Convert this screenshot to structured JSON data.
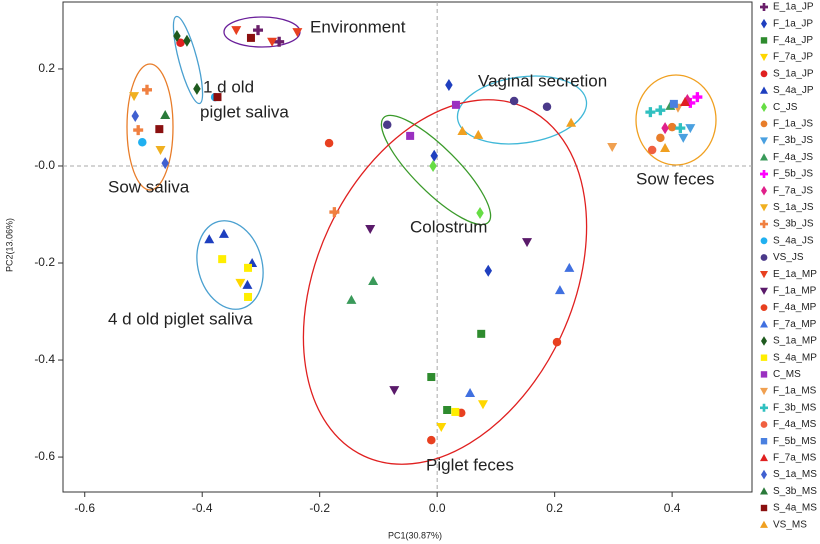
{
  "chart_data": {
    "type": "scatter",
    "x_label": "PC1(30.87%)",
    "y_label": "PC2(13.06%)",
    "xlim": [
      -0.637,
      0.536
    ],
    "ylim": [
      -0.672,
      0.338
    ],
    "xticks": [
      -0.6,
      -0.4,
      -0.2,
      {
        "value": 0,
        "label": "0.0"
      },
      0.2,
      0.4
    ],
    "yticks": [
      0.2,
      {
        "value": 0,
        "label": "-0.0"
      },
      -0.2,
      -0.4,
      -0.6
    ],
    "zero_lines": true,
    "legend": "right",
    "annotations": [
      "Environment",
      "1 d old",
      "piglet saliva",
      "Sow saliva",
      "4 d old piglet saliva",
      "Vaginal secretion",
      "Colostrum",
      "Sow feces",
      "Piglet feces"
    ],
    "series": [
      {
        "name": "E_1a_JP",
        "color": "#6a1f6a",
        "marker": "plus",
        "x": [
          -0.305,
          -0.269
        ],
        "values": [
          0.28,
          0.256
        ]
      },
      {
        "name": "F_1a_JP",
        "color": "#1f3fbf",
        "marker": "diamond",
        "x": [
          -0.005,
          0.087,
          0.02
        ],
        "values": [
          0.021,
          -0.216,
          0.167
        ]
      },
      {
        "name": "F_4a_JP",
        "color": "#2e8b2e",
        "marker": "square",
        "x": [
          0.075,
          -0.01,
          0.017
        ],
        "values": [
          -0.346,
          -0.435,
          -0.503
        ]
      },
      {
        "name": "F_7a_JP",
        "color": "#ffd700",
        "marker": "triangle-down",
        "x": [
          0.078,
          0.007,
          -0.335
        ],
        "values": [
          -0.491,
          -0.538,
          -0.241
        ]
      },
      {
        "name": "S_1a_JP",
        "color": "#e02020",
        "marker": "circle",
        "x": [
          -0.437
        ],
        "values": [
          0.254
        ]
      },
      {
        "name": "S_4a_JP",
        "color": "#1e3fbf",
        "marker": "triangle-up",
        "x": [
          -0.388,
          -0.363,
          -0.315,
          -0.323
        ],
        "values": [
          -0.151,
          -0.14,
          -0.2,
          -0.245
        ]
      },
      {
        "name": "C_JS",
        "color": "#66dd44",
        "marker": "diamond",
        "x": [
          -0.007,
          0.073
        ],
        "values": [
          0,
          -0.097
        ]
      },
      {
        "name": "F_1a_JS",
        "color": "#e87d2a",
        "marker": "circle",
        "x": [
          0.4,
          0.38
        ],
        "values": [
          0.08,
          0.058
        ]
      },
      {
        "name": "F_3b_JS",
        "color": "#4aa0e0",
        "marker": "triangle-down",
        "x": [
          0.419,
          0.431
        ],
        "values": [
          0.058,
          0.078
        ]
      },
      {
        "name": "F_4a_JS",
        "color": "#3a9a5a",
        "marker": "triangle-up",
        "x": [
          -0.109,
          -0.146,
          0.397
        ],
        "values": [
          -0.237,
          -0.276,
          0.124
        ]
      },
      {
        "name": "F_5b_JS",
        "color": "#ff00ff",
        "marker": "plus",
        "x": [
          0.443,
          0.431
        ],
        "values": [
          0.142,
          0.13
        ]
      },
      {
        "name": "F_7a_JS",
        "color": "#e0208a",
        "marker": "diamond",
        "x": [
          0.426,
          0.388
        ],
        "values": [
          0.136,
          0.078
        ]
      },
      {
        "name": "S_1a_JS",
        "color": "#f0b020",
        "marker": "triangle-down",
        "x": [
          -0.516,
          -0.471
        ],
        "values": [
          0.144,
          0.033
        ]
      },
      {
        "name": "S_3b_JS",
        "color": "#f08040",
        "marker": "plus",
        "x": [
          -0.494,
          -0.509,
          -0.175
        ],
        "values": [
          0.157,
          0.074,
          -0.095
        ]
      },
      {
        "name": "S_4a_JS",
        "color": "#20b0f0",
        "marker": "circle",
        "x": [
          -0.502,
          -0.378
        ],
        "values": [
          0.049,
          0.142
        ]
      },
      {
        "name": "VS_JS",
        "color": "#4b3a8a",
        "marker": "circle",
        "x": [
          -0.085,
          0.131,
          0.187
        ],
        "values": [
          0.085,
          0.134,
          0.122
        ]
      },
      {
        "name": "E_1a_MP",
        "color": "#e84020",
        "marker": "triangle-down",
        "x": [
          -0.342,
          -0.238,
          -0.281
        ],
        "values": [
          0.28,
          0.276,
          0.256
        ]
      },
      {
        "name": "F_1a_MP",
        "color": "#5a1a6a",
        "marker": "triangle-down",
        "x": [
          -0.114,
          -0.073,
          0.153
        ],
        "values": [
          -0.13,
          -0.462,
          -0.157
        ]
      },
      {
        "name": "F_4a_MP",
        "color": "#e84020",
        "marker": "circle",
        "x": [
          -0.184,
          0.204,
          0.041,
          -0.01
        ],
        "values": [
          0.047,
          -0.363,
          -0.509,
          -0.565
        ]
      },
      {
        "name": "F_7a_MP",
        "color": "#4070e0",
        "marker": "triangle-up",
        "x": [
          0.225,
          0.209,
          0.056
        ],
        "values": [
          -0.21,
          -0.256,
          -0.468
        ]
      },
      {
        "name": "S_1a_MP",
        "color": "#1e5a1e",
        "marker": "diamond",
        "x": [
          -0.443,
          -0.426,
          -0.409
        ],
        "values": [
          0.268,
          0.258,
          0.159
        ]
      },
      {
        "name": "S_4a_MP",
        "color": "#ffee00",
        "marker": "square",
        "x": [
          -0.366,
          -0.322,
          -0.322,
          0.031
        ],
        "values": [
          -0.192,
          -0.21,
          -0.27,
          -0.507
        ]
      },
      {
        "name": "C_MS",
        "color": "#9a30c0",
        "marker": "square",
        "x": [
          0.032,
          -0.046
        ],
        "values": [
          0.126,
          0.062
        ]
      },
      {
        "name": "F_1a_MS",
        "color": "#f0a050",
        "marker": "triangle-down",
        "x": [
          0.298,
          0.41
        ],
        "values": [
          0.039,
          0.12
        ]
      },
      {
        "name": "F_3b_MS",
        "color": "#30c0c0",
        "marker": "plus",
        "x": [
          0.363,
          0.38,
          0.414
        ],
        "values": [
          0.111,
          0.115,
          0.078
        ]
      },
      {
        "name": "F_4a_MS",
        "color": "#f06040",
        "marker": "circle",
        "x": [
          0.366
        ],
        "values": [
          0.033
        ]
      },
      {
        "name": "F_5b_MS",
        "color": "#4a80e0",
        "marker": "square",
        "x": [
          0.403
        ],
        "values": [
          0.128
        ]
      },
      {
        "name": "F_7a_MS",
        "color": "#e02020",
        "marker": "triangle-up",
        "x": [
          0.422
        ],
        "values": [
          0.132
        ]
      },
      {
        "name": "S_1a_MS",
        "color": "#4060d0",
        "marker": "diamond",
        "x": [
          -0.514,
          -0.463
        ],
        "values": [
          0.103,
          0.006
        ]
      },
      {
        "name": "S_3b_MS",
        "color": "#2a7a3a",
        "marker": "triangle-up",
        "x": [
          -0.463
        ],
        "values": [
          0.105
        ]
      },
      {
        "name": "S_4a_MS",
        "color": "#8a1010",
        "marker": "square",
        "x": [
          -0.317,
          -0.473,
          -0.374
        ],
        "values": [
          0.264,
          0.076,
          0.142
        ]
      },
      {
        "name": "VS_MS",
        "color": "#f0a020",
        "marker": "triangle-up",
        "x": [
          0.043,
          0.07,
          0.228,
          0.388
        ],
        "values": [
          0.072,
          0.064,
          0.089,
          0.037
        ]
      }
    ]
  }
}
